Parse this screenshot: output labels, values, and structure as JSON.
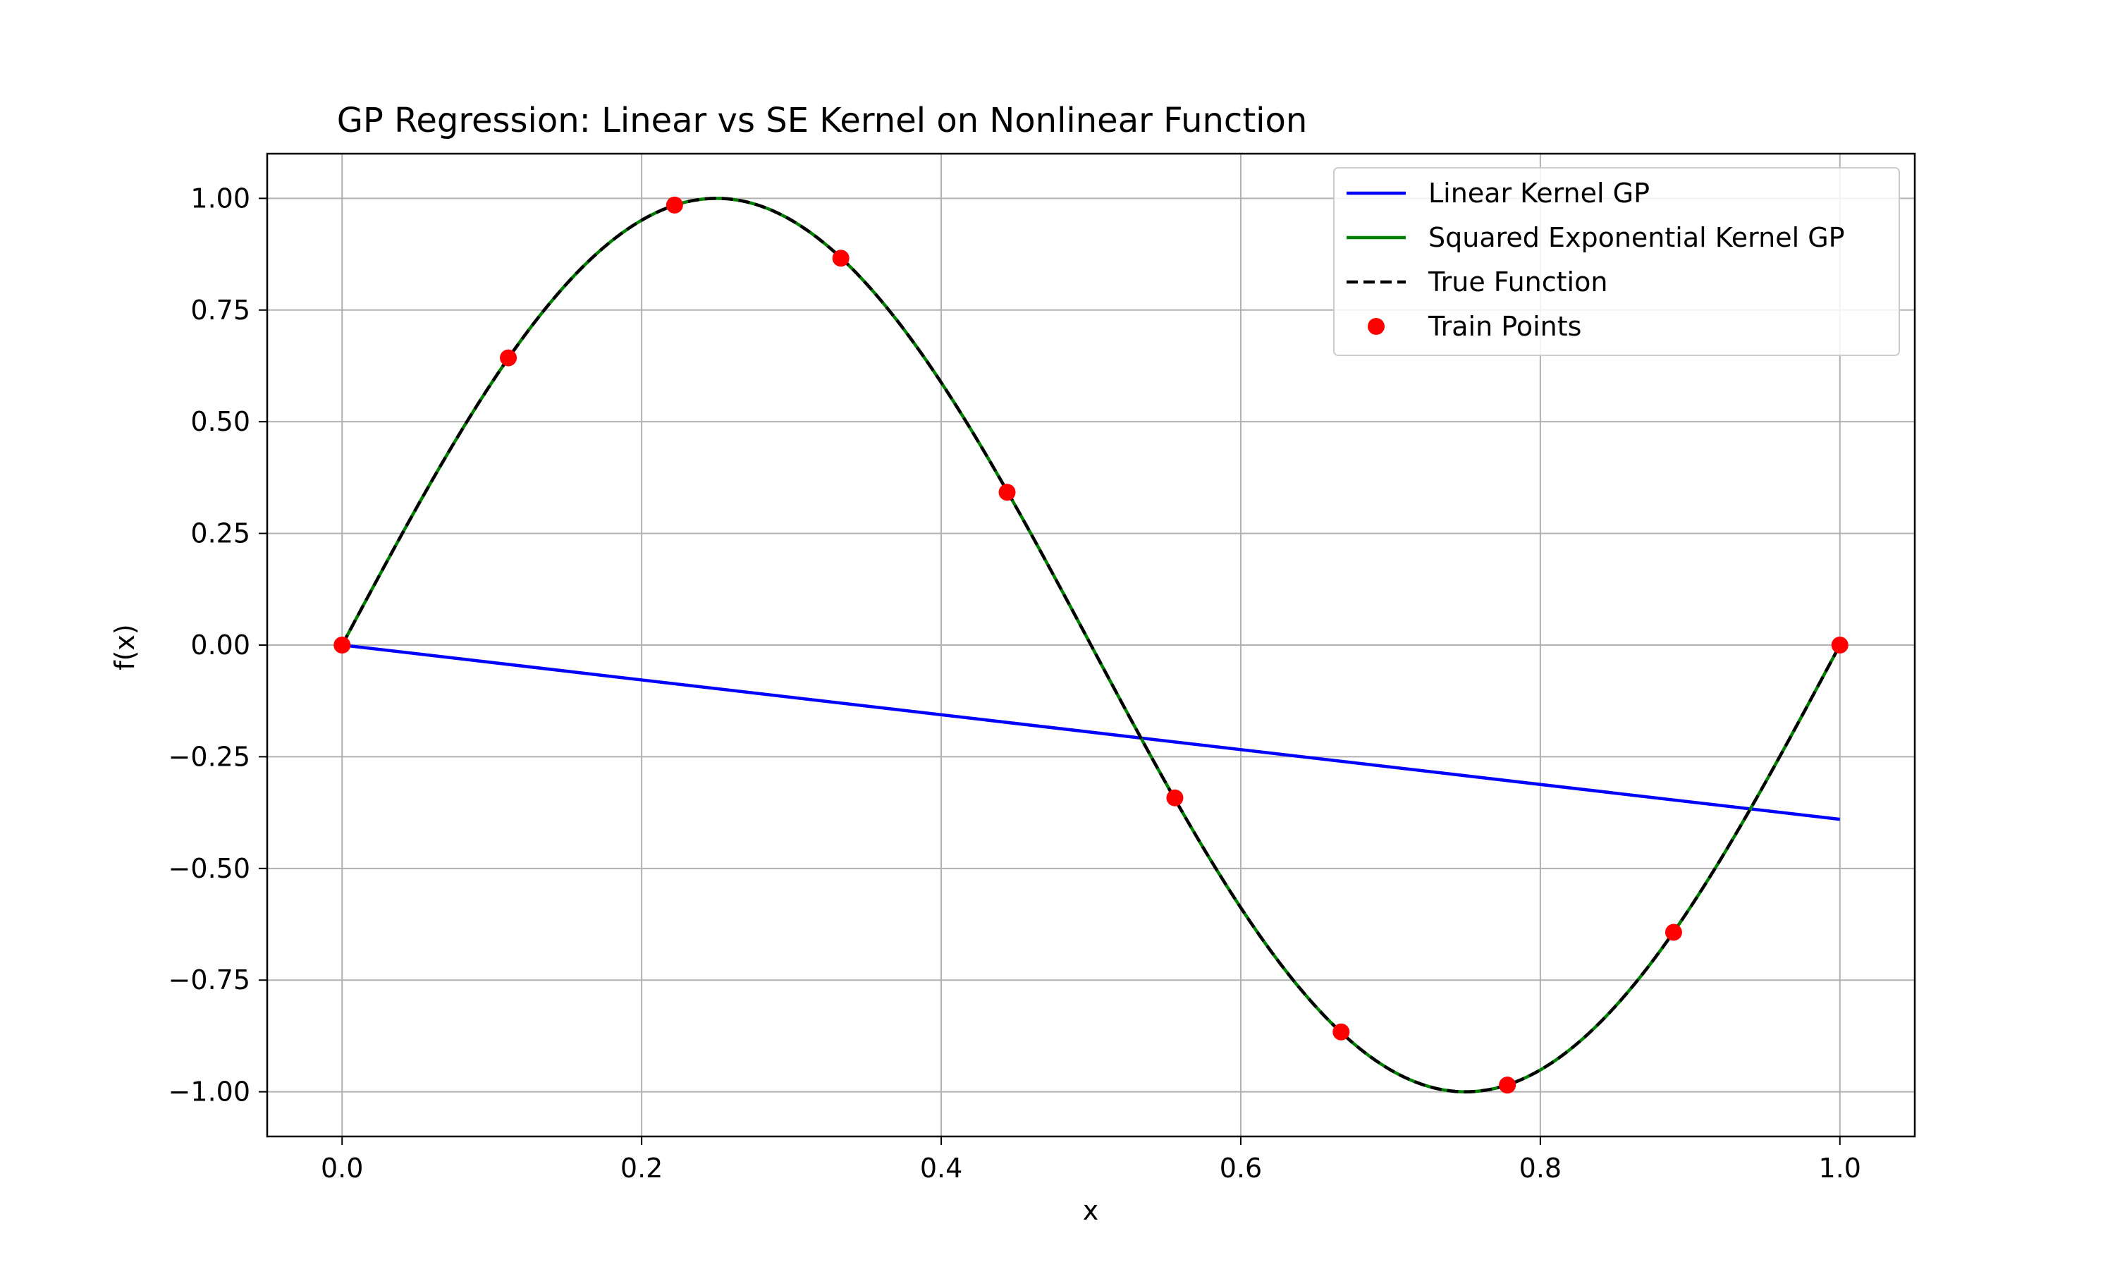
{
  "chart_data": {
    "type": "line",
    "title": "GP Regression: Linear vs SE Kernel on Nonlinear Function",
    "xlabel": "x",
    "ylabel": "f(x)",
    "xlim": [
      -0.05,
      1.05
    ],
    "ylim": [
      -1.1,
      1.1
    ],
    "xticks": [
      0.0,
      0.2,
      0.4,
      0.6,
      0.8,
      1.0
    ],
    "xtick_labels": [
      "0.0",
      "0.2",
      "0.4",
      "0.6",
      "0.8",
      "1.0"
    ],
    "yticks": [
      1.0,
      0.75,
      0.5,
      0.25,
      0.0,
      -0.25,
      -0.5,
      -0.75,
      -1.0
    ],
    "ytick_labels": [
      "1.00",
      "0.75",
      "0.50",
      "0.25",
      "0.00",
      "−0.25",
      "−0.50",
      "−0.75",
      "−1.00"
    ],
    "grid": true,
    "legend_position": "top-right",
    "series": [
      {
        "name": "Linear Kernel GP",
        "kind": "line",
        "color": "#0000ff",
        "x": [
          0.0,
          1.0
        ],
        "y": [
          0.0,
          -0.39
        ]
      },
      {
        "name": "Squared Exponential Kernel GP",
        "kind": "line",
        "color": "#008000",
        "function": "sin(2*pi*x)",
        "x_range": [
          0.0,
          1.0
        ]
      },
      {
        "name": "True Function",
        "kind": "dashed",
        "color": "#000000",
        "function": "sin(2*pi*x)",
        "x_range": [
          0.0,
          1.0
        ]
      },
      {
        "name": "Train Points",
        "kind": "points",
        "color": "#ff0000",
        "x": [
          0.0,
          0.111,
          0.222,
          0.333,
          0.444,
          0.556,
          0.667,
          0.778,
          0.889,
          1.0
        ],
        "y": [
          0.0,
          0.643,
          0.985,
          0.866,
          0.342,
          -0.342,
          -0.866,
          -0.985,
          -0.643,
          0.0
        ]
      }
    ]
  }
}
